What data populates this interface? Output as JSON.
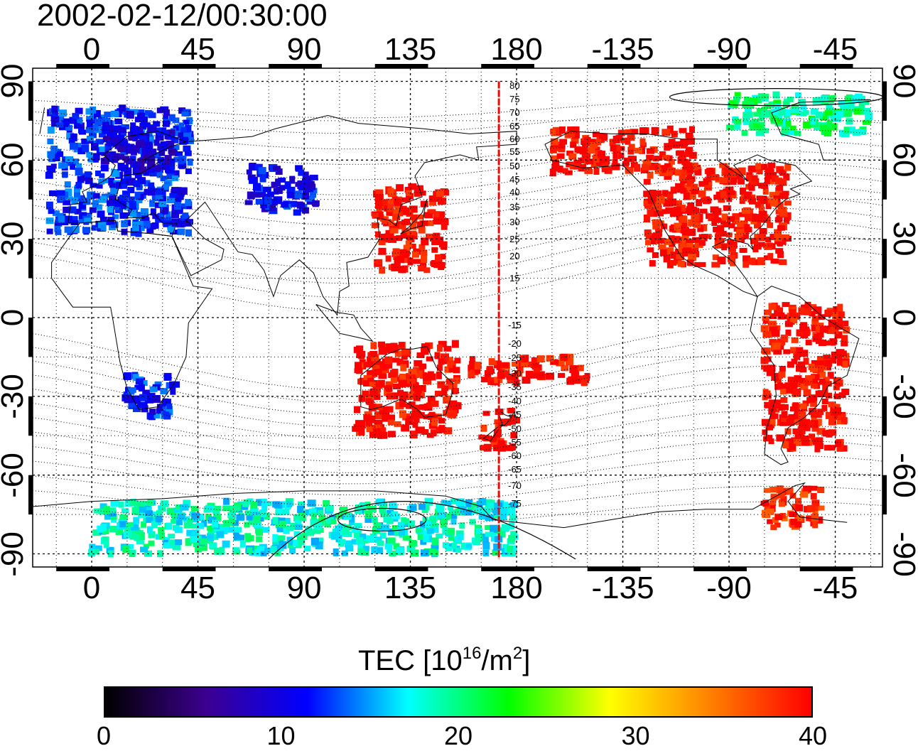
{
  "timestamp": "2002-02-12/00:30:00",
  "longitude_labels_top": [
    "0",
    "45",
    "90",
    "135",
    "180",
    "-135",
    "-90",
    "-45"
  ],
  "longitude_labels_bottom": [
    "0",
    "45",
    "90",
    "135",
    "180",
    "-135",
    "-90",
    "-45"
  ],
  "latitude_labels_left": [
    "90",
    "60",
    "30",
    "0",
    "-30",
    "-60",
    "-90"
  ],
  "latitude_labels_right": [
    "90",
    "60",
    "30",
    "0",
    "-30",
    "-60",
    "-90"
  ],
  "contour_labels_north": [
    "80",
    "75",
    "70",
    "65",
    "60",
    "55",
    "50",
    "45",
    "40",
    "35",
    "30",
    "25",
    "20",
    "15"
  ],
  "contour_labels_south": [
    "-15",
    "-20",
    "-25",
    "-30",
    "-35",
    "-40",
    "-45",
    "-50",
    "-55",
    "-60",
    "-65",
    "-70",
    "-75"
  ],
  "marker_longitude": 172.5,
  "colorbar": {
    "title_prefix": "TEC  [10",
    "title_exp1": "16",
    "title_mid": "/m",
    "title_exp2": "2",
    "title_suffix": "]",
    "min": 0,
    "max": 40,
    "ticks": [
      "0",
      "10",
      "20",
      "30",
      "40"
    ],
    "colors": [
      "#000000",
      "#3c0090",
      "#0000ff",
      "#00ffff",
      "#00ff00",
      "#ffff00",
      "#ff8000",
      "#ff0000"
    ]
  },
  "map_data": {
    "type": "map",
    "projection": "equirectangular",
    "lon_range": [
      -25,
      335
    ],
    "lat_range": [
      -95,
      95
    ],
    "grid": true,
    "regions": [
      {
        "name": "Europe",
        "lon": [
          -18,
          42
        ],
        "lat": [
          32,
          80
        ],
        "tec": 12
      },
      {
        "name": "Scandinavia",
        "lon": [
          5,
          35
        ],
        "lat": [
          55,
          72
        ],
        "tec": 9
      },
      {
        "name": "Central Asia",
        "lon": [
          65,
          95
        ],
        "lat": [
          40,
          58
        ],
        "tec": 11
      },
      {
        "name": "East Asia",
        "lon": [
          120,
          150
        ],
        "lat": [
          18,
          50
        ],
        "tec": 40
      },
      {
        "name": "North America",
        "lon": [
          235,
          295
        ],
        "lat": [
          20,
          58
        ],
        "tec": 40
      },
      {
        "name": "Alaska and Canada",
        "lon": [
          195,
          255
        ],
        "lat": [
          55,
          72
        ],
        "tec": 40
      },
      {
        "name": "Southern Africa",
        "lon": [
          14,
          36
        ],
        "lat": [
          -38,
          -22
        ],
        "tec": 12
      },
      {
        "name": "Australia",
        "lon": [
          112,
          155
        ],
        "lat": [
          -45,
          -10
        ],
        "tec": 40
      },
      {
        "name": "New Zealand",
        "lon": [
          165,
          180
        ],
        "lat": [
          -50,
          -35
        ],
        "tec": 40
      },
      {
        "name": "South Pacific",
        "lon": [
          160,
          210
        ],
        "lat": [
          -25,
          -15
        ],
        "tec": 40
      },
      {
        "name": "South America",
        "lon": [
          285,
          320
        ],
        "lat": [
          -50,
          5
        ],
        "tec": 40
      },
      {
        "name": "Antarctic Peninsula",
        "lon": [
          285,
          310
        ],
        "lat": [
          -80,
          -65
        ],
        "tec": 38
      },
      {
        "name": "Arctic",
        "lon": [
          270,
          330
        ],
        "lat": [
          70,
          85
        ],
        "tec": 20
      },
      {
        "name": "Antarctica",
        "lon": [
          0,
          180
        ],
        "lat": [
          -90,
          -70
        ],
        "tec": 18
      }
    ]
  }
}
